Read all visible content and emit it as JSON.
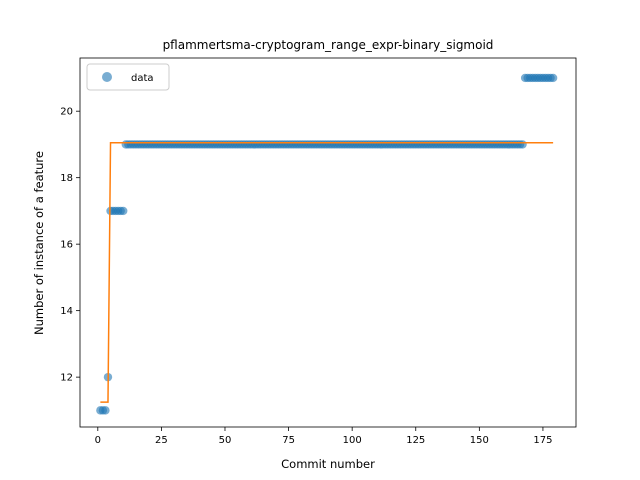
{
  "chart_data": {
    "type": "scatter",
    "title": "pflammertsma-cryptogram_range_expr-binary_sigmoid",
    "xlabel": "Commit number",
    "ylabel": "Number of instance of a feature",
    "xlim": [
      -7,
      188
    ],
    "ylim": [
      10.5,
      21.6
    ],
    "xticks": [
      0,
      25,
      50,
      75,
      100,
      125,
      150,
      175
    ],
    "yticks": [
      12,
      14,
      16,
      18,
      20
    ],
    "grid": false,
    "legend": {
      "position": "top-left",
      "entries": [
        "data"
      ]
    },
    "colors": {
      "data": "#1f77b4",
      "fit": "#ff7f0e"
    },
    "series": [
      {
        "name": "data",
        "kind": "scatter",
        "segments": [
          {
            "x_start": 1,
            "x_end": 3,
            "y": 11
          },
          {
            "x_start": 4,
            "x_end": 4,
            "y": 12
          },
          {
            "x_start": 5,
            "x_end": 10,
            "y": 17
          },
          {
            "x_start": 11,
            "x_end": 167,
            "y": 19
          },
          {
            "x_start": 168,
            "x_end": 179,
            "y": 21
          }
        ]
      },
      {
        "kind": "line",
        "x": [
          1,
          4,
          5,
          179
        ],
        "y": [
          11.25,
          11.25,
          19.05,
          19.05
        ]
      }
    ]
  }
}
